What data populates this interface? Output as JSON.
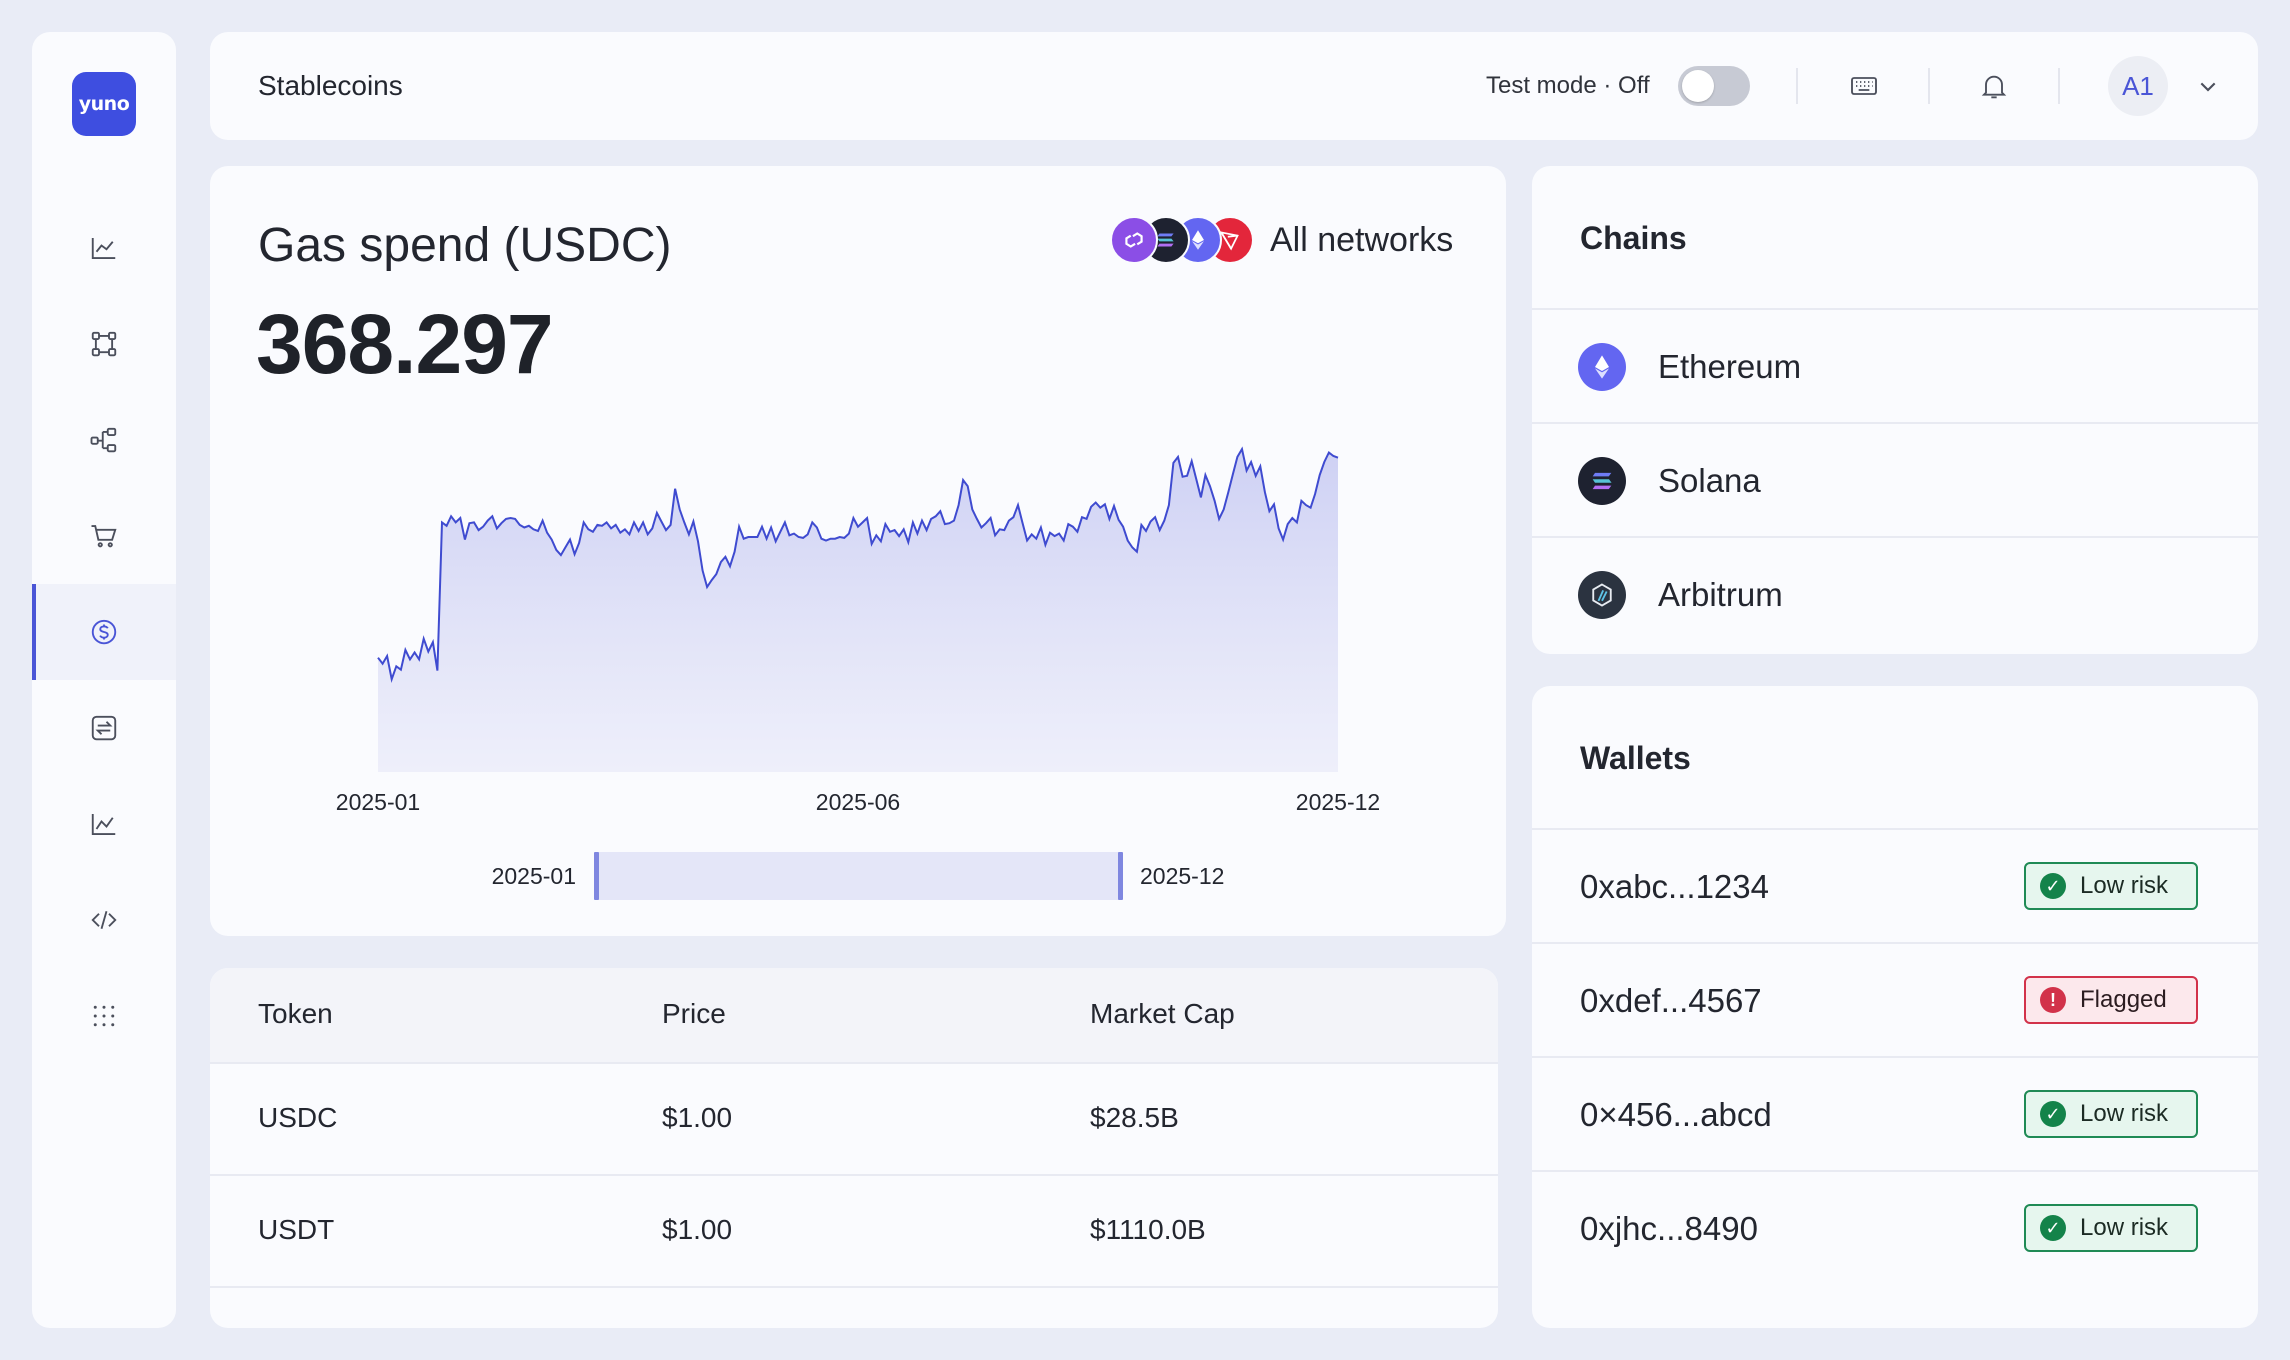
{
  "sidebar": {
    "logo_text": "yuno",
    "items": [
      {
        "icon": "line-chart-icon",
        "active": false
      },
      {
        "icon": "nodes-icon",
        "active": false
      },
      {
        "icon": "flow-icon",
        "active": false
      },
      {
        "icon": "cart-icon",
        "active": false
      },
      {
        "icon": "dollar-circle-icon",
        "active": true
      },
      {
        "icon": "transfer-icon",
        "active": false
      },
      {
        "icon": "analytics-icon",
        "active": false
      },
      {
        "icon": "code-icon",
        "active": false
      },
      {
        "icon": "apps-grid-icon",
        "active": false
      }
    ]
  },
  "header": {
    "title": "Stablecoins",
    "test_mode_label": "Test mode · Off",
    "test_mode_on": false,
    "avatar_initials": "A1"
  },
  "gas_card": {
    "title": "Gas spend (USDC)",
    "value": "368.297",
    "network_label": "All networks",
    "network_icons": [
      "polygon-icon",
      "solana-icon",
      "ethereum-icon",
      "tron-icon"
    ],
    "range_start": "2025-01",
    "range_end": "2025-12"
  },
  "chart_data": {
    "type": "area",
    "x_range": [
      "2025-01",
      "2025-12"
    ],
    "x_tick_labels": [
      "2025-01",
      "2025-06",
      "2025-12"
    ],
    "y_range": [
      0,
      420
    ],
    "grid": false,
    "legend": "none",
    "series": [
      {
        "color": "#4a55d6",
        "values": [
          128,
          121,
          130,
          103,
          118,
          114,
          137,
          126,
          134,
          126,
          150,
          135,
          146,
          113,
          285,
          281,
          292,
          285,
          290,
          265,
          284,
          285,
          276,
          280,
          287,
          292,
          278,
          284,
          289,
          290,
          289,
          282,
          279,
          281,
          277,
          275,
          287,
          273,
          265,
          253,
          247,
          256,
          265,
          248,
          261,
          285,
          277,
          274,
          282,
          281,
          285,
          278,
          282,
          273,
          277,
          271,
          285,
          275,
          285,
          271,
          278,
          296,
          286,
          276,
          282,
          324,
          300,
          285,
          271,
          286,
          263,
          229,
          210,
          218,
          225,
          239,
          245,
          234,
          251,
          280,
          266,
          268,
          268,
          268,
          280,
          266,
          279,
          263,
          274,
          285,
          270,
          272,
          268,
          267,
          271,
          285,
          279,
          266,
          264,
          266,
          266,
          268,
          267,
          272,
          290,
          280,
          285,
          290,
          260,
          270,
          263,
          283,
          274,
          276,
          269,
          277,
          262,
          285,
          272,
          287,
          276,
          289,
          292,
          298,
          283,
          284,
          287,
          305,
          334,
          327,
          300,
          289,
          279,
          284,
          290,
          270,
          277,
          276,
          287,
          291,
          305,
          284,
          264,
          271,
          266,
          279,
          259,
          273,
          269,
          272,
          264,
          283,
          280,
          274,
          291,
          289,
          303,
          308,
          302,
          306,
          289,
          304,
          288,
          280,
          264,
          256,
          251,
          282,
          275,
          286,
          291,
          276,
          287,
          305,
          354,
          361,
          338,
          339,
          356,
          335,
          314,
          340,
          327,
          310,
          289,
          300,
          320,
          341,
          361,
          370,
          345,
          355,
          339,
          350,
          320,
          298,
          306,
          278,
          265,
          283,
          290,
          285,
          310,
          305,
          302,
          318,
          340,
          355,
          366,
          362,
          360
        ]
      }
    ]
  },
  "token_table": {
    "columns": [
      "Token",
      "Price",
      "Market Cap"
    ],
    "rows": [
      {
        "token": "USDC",
        "price": "$1.00",
        "market_cap": "$28.5B"
      },
      {
        "token": "USDT",
        "price": "$1.00",
        "market_cap": "$1110.0B"
      }
    ]
  },
  "chains": {
    "title": "Chains",
    "items": [
      {
        "name": "Ethereum",
        "icon": "ethereum-icon",
        "color": "#6366f1"
      },
      {
        "name": "Solana",
        "icon": "solana-icon",
        "color": "#1e2230"
      },
      {
        "name": "Arbitrum",
        "icon": "arbitrum-icon",
        "color": "#2b3340"
      }
    ]
  },
  "wallets": {
    "title": "Wallets",
    "items": [
      {
        "address": "0xabc...1234",
        "status": "Low risk",
        "level": "ok"
      },
      {
        "address": "0xdef...4567",
        "status": "Flagged",
        "level": "bad"
      },
      {
        "address": "0×456...abcd",
        "status": "Low risk",
        "level": "ok"
      },
      {
        "address": "0xjhc...8490",
        "status": "Low risk",
        "level": "ok"
      }
    ]
  }
}
